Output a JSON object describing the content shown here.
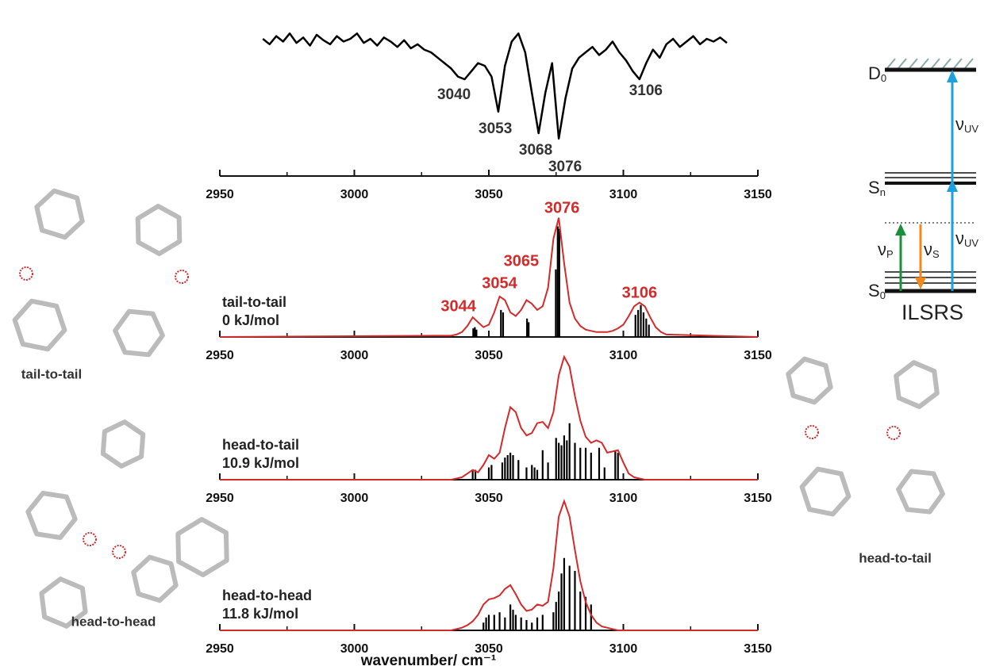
{
  "chart_data": [
    {
      "type": "line",
      "color": "#000000",
      "x": [
        2966,
        2968.5,
        2971,
        2973.5,
        2976,
        2978.5,
        2981,
        2983.5,
        2986,
        2988.5,
        2991,
        2993.5,
        2996,
        2998.5,
        3001,
        3003.5,
        3006,
        3008.5,
        3011,
        3013.5,
        3016,
        3018.5,
        3021,
        3023.5,
        3026,
        3028.5,
        3031,
        3033.5,
        3036,
        3038.5,
        3041,
        3043.5,
        3046,
        3048.5,
        3051,
        3053.5,
        3056,
        3058.5,
        3061,
        3063.5,
        3066,
        3068.5,
        3071,
        3073.5,
        3076,
        3078.5,
        3081,
        3083.5,
        3086,
        3088.5,
        3091,
        3093.5,
        3096,
        3098.5,
        3101,
        3103.5,
        3106,
        3108.5,
        3111,
        3113.5,
        3116,
        3118.5,
        3121,
        3123.5,
        3126,
        3128.5,
        3131,
        3133.5,
        3136,
        3138.5
      ],
      "values": [
        80,
        76,
        82,
        78,
        84,
        77,
        81,
        75,
        83,
        79,
        76,
        82,
        78,
        80,
        84,
        77,
        80,
        75,
        81,
        78,
        74,
        79,
        73,
        76,
        72,
        70,
        66,
        62,
        58,
        52,
        50,
        56,
        62,
        60,
        52,
        26,
        60,
        78,
        84,
        70,
        40,
        10,
        40,
        62,
        6,
        36,
        58,
        66,
        70,
        74,
        68,
        72,
        78,
        70,
        64,
        56,
        50,
        62,
        72,
        66,
        76,
        80,
        74,
        78,
        82,
        76,
        80,
        78,
        81,
        77
      ],
      "ylim": [
        0,
        100
      ],
      "xlim": [
        2950,
        3150
      ],
      "xticks": [
        2950,
        3000,
        3050,
        3100,
        3150
      ],
      "xminorticks": [
        2975,
        3025,
        3075,
        3125
      ],
      "peak_labels": [
        3040,
        3053,
        3068,
        3076,
        3106
      ]
    },
    {
      "type": "stick",
      "label": "tail-to-tail",
      "energy": "0 kJ/mol",
      "xlim": [
        2950,
        3150
      ],
      "xticks": [
        2950,
        3000,
        3050,
        3100,
        3150
      ],
      "xminorticks": [
        2975,
        3025,
        3075,
        3125
      ],
      "ylim": [
        0,
        100
      ],
      "curve": {
        "color": "#d42a2a",
        "x": [
          2950,
          3030,
          3036,
          3038,
          3040,
          3042,
          3044,
          3046,
          3048,
          3050,
          3052,
          3054,
          3056,
          3058,
          3060,
          3062,
          3064,
          3066,
          3068,
          3070,
          3072,
          3074,
          3076,
          3078,
          3080,
          3082,
          3084,
          3086,
          3088,
          3090,
          3092,
          3094,
          3096,
          3098,
          3100,
          3102,
          3104,
          3106,
          3108,
          3110,
          3112,
          3114,
          3116,
          3150
        ],
        "values": [
          0,
          1,
          1,
          2,
          4,
          9,
          16,
          12,
          8,
          10,
          20,
          33,
          30,
          20,
          17,
          22,
          30,
          27,
          22,
          25,
          40,
          80,
          97,
          60,
          28,
          15,
          9,
          6,
          5,
          4,
          4,
          4,
          5,
          7,
          10,
          17,
          25,
          28,
          25,
          16,
          8,
          4,
          2,
          0
        ]
      },
      "sticks": {
        "color": "#000000",
        "x": [
          3044.2,
          3044.8,
          3045.4,
          3054.5,
          3055.3,
          3064.2,
          3064.8,
          3074.9,
          3075.6,
          3076.2,
          3104.5,
          3105.5,
          3106.5,
          3107.5,
          3108.5,
          3109.5
        ],
        "values": [
          7,
          8,
          6,
          22,
          20,
          15,
          12,
          55,
          90,
          88,
          18,
          22,
          26,
          20,
          15,
          10
        ]
      },
      "peak_labels": [
        3044,
        3054,
        3065,
        3076,
        3106
      ]
    },
    {
      "type": "stick",
      "label": "head-to-tail",
      "energy": "10.9 kJ/mol",
      "xlim": [
        2950,
        3150
      ],
      "xticks": [
        2950,
        3000,
        3050,
        3100,
        3150
      ],
      "xminorticks": [
        2975,
        3025,
        3075,
        3125
      ],
      "ylim": [
        0,
        100
      ],
      "curve": {
        "color": "#d42a2a",
        "x": [
          2950,
          3030,
          3036,
          3038,
          3040,
          3042,
          3044,
          3046,
          3048,
          3050,
          3052,
          3054,
          3056,
          3058,
          3060,
          3062,
          3064,
          3066,
          3068,
          3070,
          3072,
          3074,
          3076,
          3078,
          3080,
          3082,
          3084,
          3086,
          3088,
          3090,
          3092,
          3094,
          3096,
          3098,
          3100,
          3102,
          3104,
          3106,
          3108,
          3110,
          3112,
          3114,
          3116,
          3150
        ],
        "values": [
          0,
          0,
          0,
          1,
          2,
          5,
          8,
          6,
          12,
          20,
          17,
          22,
          42,
          59,
          55,
          42,
          36,
          38,
          46,
          47,
          42,
          55,
          85,
          100,
          92,
          68,
          48,
          35,
          30,
          32,
          30,
          22,
          23,
          24,
          14,
          5,
          2,
          1,
          0,
          0,
          0,
          0,
          0,
          0
        ]
      },
      "sticks": {
        "color": "#000000",
        "x": [
          3044,
          3045,
          3050,
          3051,
          3055,
          3056,
          3057,
          3058,
          3059,
          3061,
          3064,
          3066,
          3067,
          3068,
          3070,
          3072,
          3075,
          3076,
          3077,
          3078,
          3079,
          3080,
          3082,
          3084,
          3086,
          3088,
          3091,
          3093,
          3097,
          3098
        ],
        "values": [
          7,
          8,
          10,
          12,
          14,
          18,
          20,
          22,
          20,
          16,
          10,
          12,
          10,
          8,
          24,
          14,
          34,
          30,
          28,
          36,
          32,
          46,
          30,
          26,
          26,
          22,
          26,
          10,
          24,
          22
        ]
      }
    },
    {
      "type": "stick",
      "label": "head-to-head",
      "energy": "11.8 kJ/mol",
      "xlim": [
        2950,
        3150
      ],
      "xticks": [
        2950,
        3000,
        3050,
        3100,
        3150
      ],
      "xminorticks": [
        2975,
        3025,
        3075,
        3125
      ],
      "ylim": [
        0,
        100
      ],
      "xlabel": "wavenumber/ cm⁻¹",
      "curve": {
        "color": "#d42a2a",
        "x": [
          2950,
          3030,
          3036,
          3038,
          3040,
          3042,
          3044,
          3046,
          3048,
          3050,
          3052,
          3054,
          3056,
          3058,
          3060,
          3062,
          3064,
          3066,
          3068,
          3070,
          3072,
          3074,
          3076,
          3078,
          3080,
          3082,
          3084,
          3086,
          3088,
          3090,
          3092,
          3094,
          3096,
          3098,
          3100,
          3102,
          3104,
          3106,
          3108,
          3110,
          3112,
          3114,
          3116,
          3150
        ],
        "values": [
          0,
          0,
          0,
          1,
          2,
          4,
          7,
          12,
          20,
          24,
          25,
          27,
          32,
          35,
          28,
          20,
          15,
          16,
          20,
          19,
          22,
          48,
          88,
          100,
          88,
          62,
          38,
          22,
          12,
          6,
          3,
          2,
          1,
          0,
          0,
          0,
          0,
          0,
          0,
          0,
          0,
          0,
          0,
          0
        ]
      },
      "sticks": {
        "color": "#000000",
        "x": [
          3048,
          3049,
          3050,
          3052,
          3054,
          3056,
          3058,
          3059,
          3060,
          3062,
          3064,
          3066,
          3068,
          3070,
          3074,
          3075,
          3076,
          3077,
          3078,
          3080,
          3082,
          3084,
          3086,
          3088
        ],
        "values": [
          6,
          10,
          12,
          12,
          14,
          10,
          20,
          16,
          12,
          10,
          8,
          6,
          10,
          12,
          14,
          22,
          30,
          44,
          56,
          50,
          46,
          30,
          26,
          20
        ]
      }
    }
  ],
  "energy_diagram": {
    "levels": [
      {
        "symbol": "D",
        "subscript": "0"
      },
      {
        "symbol": "S",
        "subscript": "n"
      },
      {
        "symbol": "S",
        "subscript": "0"
      }
    ],
    "transitions": [
      {
        "symbol": "ν",
        "subscript": "UV"
      },
      {
        "symbol": "ν",
        "subscript": "P"
      },
      {
        "symbol": "ν",
        "subscript": "S"
      },
      {
        "symbol": "ν",
        "subscript": "UV"
      }
    ],
    "scheme": "ILSRS"
  },
  "structures": [
    {
      "caption": "tail-to-tail"
    },
    {
      "caption": "head-to-head"
    },
    {
      "caption": "head-to-tail"
    }
  ]
}
